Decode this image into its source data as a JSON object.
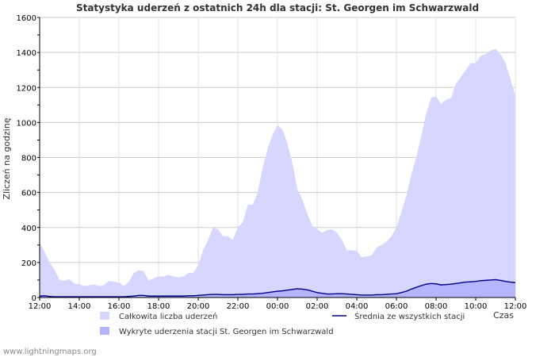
{
  "chart_data": {
    "type": "area",
    "title": "Statystyka uderzeń z ostatnich 24h dla stacji: St. Georgen im Schwarzwald",
    "ylabel": "Zliczeń na godzinę",
    "xlabel": "Czas",
    "ylim": [
      0,
      1600
    ],
    "yticks": [
      0,
      200,
      400,
      600,
      800,
      1000,
      1200,
      1400,
      1600
    ],
    "xlim": [
      0,
      24
    ],
    "xticks": [
      {
        "x": 0,
        "label": "12:00"
      },
      {
        "x": 2,
        "label": "14:00"
      },
      {
        "x": 4,
        "label": "16:00"
      },
      {
        "x": 6,
        "label": "18:00"
      },
      {
        "x": 8,
        "label": "20:00"
      },
      {
        "x": 10,
        "label": "22:00"
      },
      {
        "x": 12,
        "label": "00:00"
      },
      {
        "x": 14,
        "label": "02:00"
      },
      {
        "x": 16,
        "label": "04:00"
      },
      {
        "x": 18,
        "label": "06:00"
      },
      {
        "x": 20,
        "label": "08:00"
      },
      {
        "x": 22,
        "label": "10:00"
      },
      {
        "x": 24,
        "label": "12:00"
      }
    ],
    "grid": true,
    "legend_position": "bottom",
    "series": [
      {
        "name": "Całkowita liczba uderzeń",
        "kind": "area",
        "color": "#d6d6ff",
        "x": [
          0.0,
          0.25,
          0.5,
          0.75,
          1.0,
          1.25,
          1.5,
          1.75,
          2.0,
          2.25,
          2.5,
          2.75,
          3.0,
          3.25,
          3.5,
          3.75,
          4.0,
          4.25,
          4.5,
          4.75,
          5.0,
          5.25,
          5.5,
          5.75,
          6.0,
          6.25,
          6.5,
          6.75,
          7.0,
          7.25,
          7.5,
          7.75,
          8.0,
          8.25,
          8.5,
          8.75,
          9.0,
          9.25,
          9.5,
          9.75,
          10.0,
          10.25,
          10.5,
          10.75,
          11.0,
          11.25,
          11.5,
          11.75,
          12.0,
          12.25,
          12.5,
          12.75,
          13.0,
          13.25,
          13.5,
          13.75,
          14.0,
          14.25,
          14.5,
          14.75,
          15.0,
          15.25,
          15.5,
          15.75,
          16.0,
          16.25,
          16.5,
          16.75,
          17.0,
          17.25,
          17.5,
          17.75,
          18.0,
          18.25,
          18.5,
          18.75,
          19.0,
          19.25,
          19.5,
          19.75,
          20.0,
          20.25,
          20.5,
          20.75,
          21.0,
          21.25,
          21.5,
          21.75,
          22.0,
          22.25,
          22.5,
          22.75,
          23.0,
          23.25,
          23.5,
          23.75,
          24.0
        ],
        "values": [
          310,
          260,
          200,
          160,
          100,
          95,
          105,
          80,
          75,
          65,
          70,
          75,
          65,
          70,
          95,
          90,
          85,
          65,
          90,
          140,
          155,
          150,
          95,
          110,
          120,
          120,
          130,
          120,
          115,
          120,
          140,
          140,
          185,
          270,
          330,
          400,
          390,
          350,
          350,
          330,
          400,
          430,
          530,
          530,
          600,
          740,
          850,
          930,
          985,
          960,
          880,
          770,
          620,
          560,
          480,
          410,
          390,
          370,
          385,
          390,
          370,
          330,
          270,
          270,
          265,
          230,
          235,
          240,
          285,
          300,
          320,
          350,
          400,
          490,
          580,
          700,
          800,
          920,
          1050,
          1140,
          1150,
          1105,
          1130,
          1140,
          1220,
          1260,
          1300,
          1340,
          1340,
          1380,
          1390,
          1410,
          1420,
          1390,
          1340,
          1250,
          1150
        ]
      },
      {
        "name": "Wykryte uderzenia stacji St. Georgen im Schwarzwald",
        "kind": "area",
        "color": "#b4b4ff",
        "values": [
          8,
          10,
          6,
          4,
          4,
          4,
          4,
          4,
          4,
          4,
          4,
          4,
          4,
          4,
          4,
          4,
          4,
          4,
          6,
          8,
          12,
          12,
          8,
          8,
          8,
          8,
          8,
          8,
          8,
          8,
          10,
          10,
          12,
          14,
          16,
          18,
          18,
          16,
          16,
          16,
          18,
          18,
          20,
          20,
          22,
          24,
          28,
          32,
          36,
          38,
          42,
          46,
          50,
          48,
          44,
          36,
          28,
          24,
          20,
          20,
          22,
          22,
          20,
          18,
          16,
          14,
          14,
          14,
          16,
          16,
          18,
          20,
          22,
          28,
          36,
          48,
          58,
          68,
          76,
          80,
          78,
          72,
          74,
          76,
          80,
          84,
          88,
          90,
          92,
          96,
          98,
          100,
          102,
          98,
          92,
          88,
          85
        ]
      },
      {
        "name": "Średnia ze wszystkich stacji",
        "kind": "line",
        "color": "#00008b",
        "values": [
          8,
          10,
          6,
          4,
          4,
          4,
          4,
          4,
          4,
          4,
          4,
          4,
          4,
          4,
          4,
          4,
          4,
          4,
          6,
          8,
          12,
          12,
          8,
          8,
          8,
          8,
          8,
          8,
          8,
          8,
          10,
          10,
          12,
          14,
          16,
          18,
          18,
          16,
          16,
          16,
          18,
          18,
          20,
          20,
          22,
          24,
          28,
          32,
          36,
          38,
          42,
          46,
          50,
          48,
          44,
          36,
          28,
          24,
          20,
          20,
          22,
          22,
          20,
          18,
          16,
          14,
          14,
          14,
          16,
          16,
          18,
          20,
          22,
          28,
          36,
          48,
          58,
          68,
          76,
          80,
          78,
          72,
          74,
          76,
          80,
          84,
          88,
          90,
          92,
          96,
          98,
          100,
          102,
          98,
          92,
          88,
          85
        ]
      }
    ]
  },
  "footer": {
    "watermark": "www.lightningmaps.org"
  }
}
